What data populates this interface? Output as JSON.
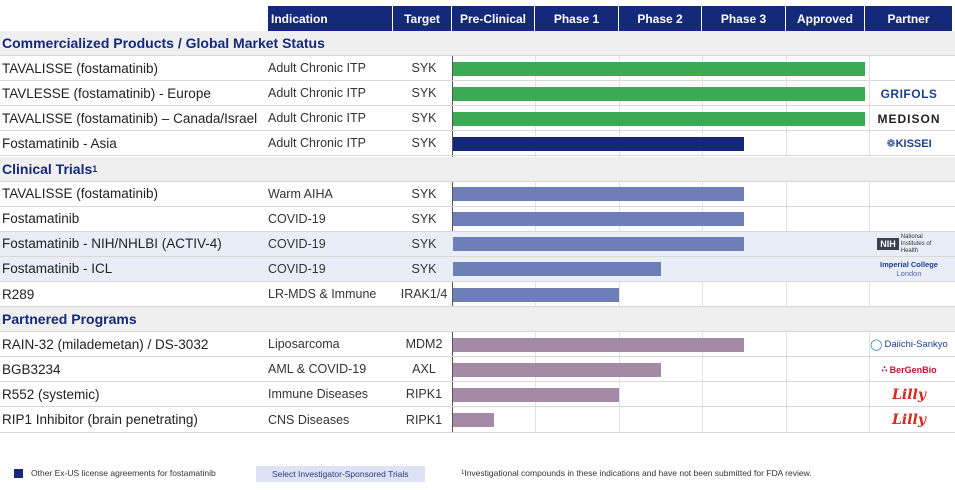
{
  "colors": {
    "header_bg": "#14297a",
    "commercial": "#3aaa55",
    "asia": "#14297a",
    "clinical": "#6e7fb8",
    "partnered": "#a58aa5",
    "section_bg": "#efefef",
    "highlight_bg": "#e9edf8"
  },
  "header": {
    "indication": "Indication",
    "target": "Target",
    "stages": [
      "Pre-Clinical",
      "Phase 1",
      "Phase 2",
      "Phase 3",
      "Approved"
    ],
    "partner": "Partner"
  },
  "chart_data": {
    "type": "bar",
    "orientation": "horizontal",
    "stage_axis": [
      "Pre-Clinical",
      "Phase 1",
      "Phase 2",
      "Phase 3",
      "Approved"
    ],
    "xlim": [
      0,
      5
    ],
    "sections": [
      {
        "title": "Commercialized Products / Global Market Status",
        "footnote_mark": "",
        "rows": [
          {
            "name": "TAVALISSE (fostamatinib)",
            "indication": "Adult Chronic ITP",
            "target": "SYK",
            "progress": 4.95,
            "color_key": "commercial",
            "partner": "",
            "highlight": false
          },
          {
            "name": "TAVLESSE (fostamatinib) - Europe",
            "indication": "Adult Chronic ITP",
            "target": "SYK",
            "progress": 4.95,
            "color_key": "commercial",
            "partner": "GRIFOLS",
            "highlight": false
          },
          {
            "name": "TAVALISSE (fostamatinib) – Canada/Israel",
            "indication": "Adult Chronic ITP",
            "target": "SYK",
            "progress": 4.95,
            "color_key": "commercial",
            "partner": "MEDISON",
            "highlight": false
          },
          {
            "name": "Fostamatinib - Asia",
            "indication": "Adult Chronic ITP",
            "target": "SYK",
            "progress": 3.5,
            "color_key": "asia",
            "partner": "KISSEI",
            "highlight": false
          }
        ]
      },
      {
        "title": "Clinical Trials",
        "footnote_mark": "1",
        "rows": [
          {
            "name": "TAVALISSE (fostamatinib)",
            "indication": "Warm AIHA",
            "target": "SYK",
            "progress": 3.5,
            "color_key": "clinical",
            "partner": "",
            "highlight": false
          },
          {
            "name": "Fostamatinib",
            "indication": "COVID-19",
            "target": "SYK",
            "progress": 3.5,
            "color_key": "clinical",
            "partner": "",
            "highlight": false
          },
          {
            "name": "Fostamatinib - NIH/NHLBI (ACTIV-4)",
            "indication": "COVID-19",
            "target": "SYK",
            "progress": 3.5,
            "color_key": "clinical",
            "partner": "NIH",
            "highlight": true
          },
          {
            "name": "Fostamatinib - ICL",
            "indication": "COVID-19",
            "target": "SYK",
            "progress": 2.5,
            "color_key": "clinical",
            "partner": "Imperial College London",
            "highlight": true
          },
          {
            "name": "R289",
            "indication": "LR-MDS & Immune",
            "target": "IRAK1/4",
            "progress": 2.0,
            "color_key": "clinical",
            "partner": "",
            "highlight": false
          }
        ]
      },
      {
        "title": "Partnered Programs",
        "footnote_mark": "",
        "rows": [
          {
            "name": "RAIN-32 (milademetan) / DS-3032",
            "indication": "Liposarcoma",
            "target": "MDM2",
            "progress": 3.5,
            "color_key": "partnered",
            "partner": "Daiichi-Sankyo",
            "highlight": false
          },
          {
            "name": "BGB3234",
            "indication": "AML & COVID-19",
            "target": "AXL",
            "progress": 2.5,
            "color_key": "partnered",
            "partner": "BerGenBio",
            "highlight": false
          },
          {
            "name": "R552 (systemic)",
            "indication": "Immune Diseases",
            "target": "RIPK1",
            "progress": 2.0,
            "color_key": "partnered",
            "partner": "Lilly",
            "highlight": false
          },
          {
            "name": "RIP1 Inhibitor (brain penetrating)",
            "indication": "CNS Diseases",
            "target": "RIPK1",
            "progress": 0.5,
            "color_key": "partnered",
            "partner": "Lilly",
            "highlight": false
          }
        ]
      }
    ]
  },
  "partner_logos": {
    "nih_box": "NIH",
    "nih_text": "National Institutes of Health",
    "imperial_line1": "Imperial College",
    "imperial_line2": "London"
  },
  "legend": {
    "exus": "Other Ex-US license agreements for fostamatinib",
    "investigator": "Select Investigator-Sponsored Trials",
    "footnote_mark": "1",
    "footnote": "Investigational compounds in these indications and have not been submitted for FDA review."
  }
}
